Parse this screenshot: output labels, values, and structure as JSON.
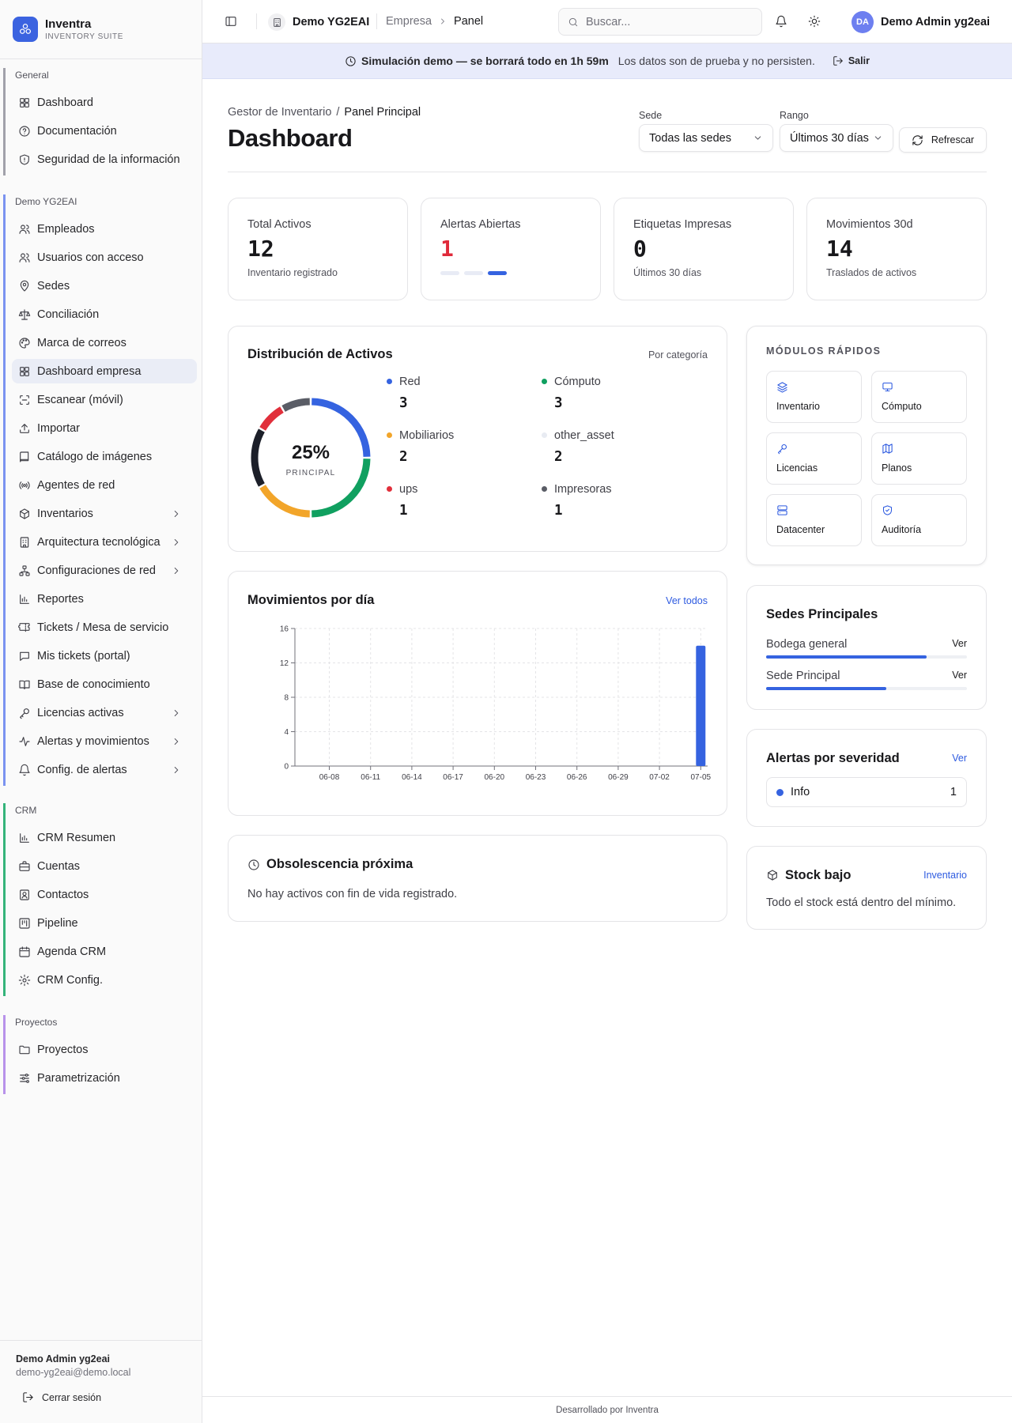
{
  "brand": {
    "name": "Inventra",
    "subtitle": "INVENTORY SUITE"
  },
  "sidebar": {
    "groups": [
      {
        "label": "General",
        "items": [
          {
            "label": "Dashboard",
            "icon": "grid-icon"
          },
          {
            "label": "Documentación",
            "icon": "help-circle-icon"
          },
          {
            "label": "Seguridad de la información",
            "icon": "shield-icon"
          }
        ]
      },
      {
        "label": "Demo YG2EAI",
        "items": [
          {
            "label": "Empleados",
            "icon": "users-icon"
          },
          {
            "label": "Usuarios con acceso",
            "icon": "users-icon"
          },
          {
            "label": "Sedes",
            "icon": "map-pin-icon"
          },
          {
            "label": "Conciliación",
            "icon": "scale-icon"
          },
          {
            "label": "Marca de correos",
            "icon": "palette-icon"
          },
          {
            "label": "Dashboard empresa",
            "icon": "grid-icon",
            "active": true
          },
          {
            "label": "Escanear (móvil)",
            "icon": "scan-icon"
          },
          {
            "label": "Importar",
            "icon": "upload-icon"
          },
          {
            "label": "Catálogo de imágenes",
            "icon": "book-icon"
          },
          {
            "label": "Agentes de red",
            "icon": "radio-icon"
          },
          {
            "label": "Inventarios",
            "icon": "box-icon",
            "expandable": true
          },
          {
            "label": "Arquitectura tecnológica",
            "icon": "building-icon",
            "expandable": true
          },
          {
            "label": "Configuraciones de red",
            "icon": "network-icon",
            "expandable": true
          },
          {
            "label": "Reportes",
            "icon": "bar-chart-icon"
          },
          {
            "label": "Tickets / Mesa de servicio",
            "icon": "ticket-icon"
          },
          {
            "label": "Mis tickets (portal)",
            "icon": "message-icon"
          },
          {
            "label": "Base de conocimiento",
            "icon": "book-open-icon"
          },
          {
            "label": "Licencias activas",
            "icon": "key-icon",
            "expandable": true
          },
          {
            "label": "Alertas y movimientos",
            "icon": "activity-icon",
            "expandable": true
          },
          {
            "label": "Config. de alertas",
            "icon": "bell-settings-icon",
            "expandable": true
          }
        ]
      },
      {
        "label": "CRM",
        "items": [
          {
            "label": "CRM Resumen",
            "icon": "bar-chart-icon"
          },
          {
            "label": "Cuentas",
            "icon": "briefcase-icon"
          },
          {
            "label": "Contactos",
            "icon": "contact-icon"
          },
          {
            "label": "Pipeline",
            "icon": "kanban-icon"
          },
          {
            "label": "Agenda CRM",
            "icon": "calendar-icon"
          },
          {
            "label": "CRM Config.",
            "icon": "gear-icon"
          }
        ]
      },
      {
        "label": "Proyectos",
        "items": [
          {
            "label": "Proyectos",
            "icon": "folder-icon"
          },
          {
            "label": "Parametrización",
            "icon": "sliders-icon"
          }
        ]
      }
    ],
    "footer": {
      "user_name": "Demo Admin yg2eai",
      "email": "demo-yg2eai@demo.local",
      "logout_label": "Cerrar sesión"
    }
  },
  "topbar": {
    "org_name": "Demo YG2EAI",
    "breadcrumb": [
      "Empresa",
      "Panel"
    ],
    "search_placeholder": "Buscar...",
    "user_initials": "DA",
    "user_name": "Demo Admin yg2eai"
  },
  "banner": {
    "strong": "Simulación demo — se borrará todo en 1h 59m",
    "note": "Los datos son de prueba y no persisten.",
    "exit_label": "Salir"
  },
  "header": {
    "breadcrumb_parent": "Gestor de Inventario",
    "breadcrumb_current": "Panel Principal",
    "title": "Dashboard",
    "sede_label": "Sede",
    "sede_value": "Todas las sedes",
    "rango_label": "Rango",
    "rango_value": "Últimos 30 días",
    "refresh_label": "Refrescar"
  },
  "kpis": [
    {
      "label": "Total Activos",
      "value": "12",
      "sub": "Inventario registrado",
      "color": "#18181b"
    },
    {
      "label": "Alertas Abiertas",
      "value": "1",
      "sub": "",
      "color": "#e02a3a"
    },
    {
      "label": "Etiquetas Impresas",
      "value": "0",
      "sub": "Últimos 30 días",
      "color": "#18181b"
    },
    {
      "label": "Movimientos 30d",
      "value": "14",
      "sub": "Traslados de activos",
      "color": "#18181b"
    }
  ],
  "distribution": {
    "title": "Distribución de Activos",
    "filter_label": "Por categoría",
    "center_value": "25%",
    "center_label": "PRINCIPAL",
    "items": [
      {
        "name": "Red",
        "value": "3",
        "color": "#3563e0"
      },
      {
        "name": "Cómputo",
        "value": "3",
        "color": "#10a060"
      },
      {
        "name": "Mobiliarios",
        "value": "2",
        "color": "#f2a52a"
      },
      {
        "name": "other_asset",
        "value": "2",
        "color": "#1c1f29"
      },
      {
        "name": "ups",
        "value": "1",
        "color": "#e12f3b"
      },
      {
        "name": "Impresoras",
        "value": "1",
        "color": "#5a5d66"
      }
    ]
  },
  "movements": {
    "title": "Movimientos por día",
    "link_label": "Ver todos"
  },
  "chart_data": {
    "type": "bar",
    "x": [
      "06-06",
      "06-07",
      "06-08",
      "06-09",
      "06-10",
      "06-11",
      "06-12",
      "06-13",
      "06-14",
      "06-15",
      "06-16",
      "06-17",
      "06-18",
      "06-19",
      "06-20",
      "06-21",
      "06-22",
      "06-23",
      "06-24",
      "06-25",
      "06-26",
      "06-27",
      "06-28",
      "06-29",
      "06-30",
      "07-01",
      "07-02",
      "07-03",
      "07-04",
      "07-05"
    ],
    "values": [
      0,
      0,
      0,
      0,
      0,
      0,
      0,
      0,
      0,
      0,
      0,
      0,
      0,
      0,
      0,
      0,
      0,
      0,
      0,
      0,
      0,
      0,
      0,
      0,
      0,
      0,
      0,
      0,
      0,
      14
    ],
    "tick_labels": [
      "06-08",
      "06-11",
      "06-14",
      "06-17",
      "06-20",
      "06-23",
      "06-26",
      "06-29",
      "07-02",
      "07-05"
    ],
    "yticks": [
      0,
      4,
      8,
      12,
      16
    ],
    "ylim": [
      0,
      16
    ],
    "grid": true,
    "color": "#3563e0"
  },
  "obsolescence": {
    "title": "Obsolescencia próxima",
    "empty": "No hay activos con fin de vida registrado."
  },
  "modules": {
    "title": "MÓDULOS RÁPIDOS",
    "items": [
      {
        "label": "Inventario",
        "icon": "layers-icon"
      },
      {
        "label": "Cómputo",
        "icon": "monitor-icon"
      },
      {
        "label": "Licencias",
        "icon": "key-icon"
      },
      {
        "label": "Planos",
        "icon": "map-icon"
      },
      {
        "label": "Datacenter",
        "icon": "server-icon"
      },
      {
        "label": "Auditoría",
        "icon": "shield-check-icon"
      }
    ]
  },
  "sedes": {
    "title": "Sedes Principales",
    "items": [
      {
        "name": "Bodega general",
        "link": "Ver",
        "share": 0.8
      },
      {
        "name": "Sede Principal",
        "link": "Ver",
        "share": 0.6
      }
    ]
  },
  "severity": {
    "title": "Alertas por severidad",
    "link_label": "Ver",
    "items": [
      {
        "name": "Info",
        "count": "1",
        "color": "#3563e0"
      }
    ]
  },
  "stock": {
    "title": "Stock bajo",
    "link_label": "Inventario",
    "empty": "Todo el stock está dentro del mínimo."
  },
  "footer_text": "Desarrollado por Inventra"
}
